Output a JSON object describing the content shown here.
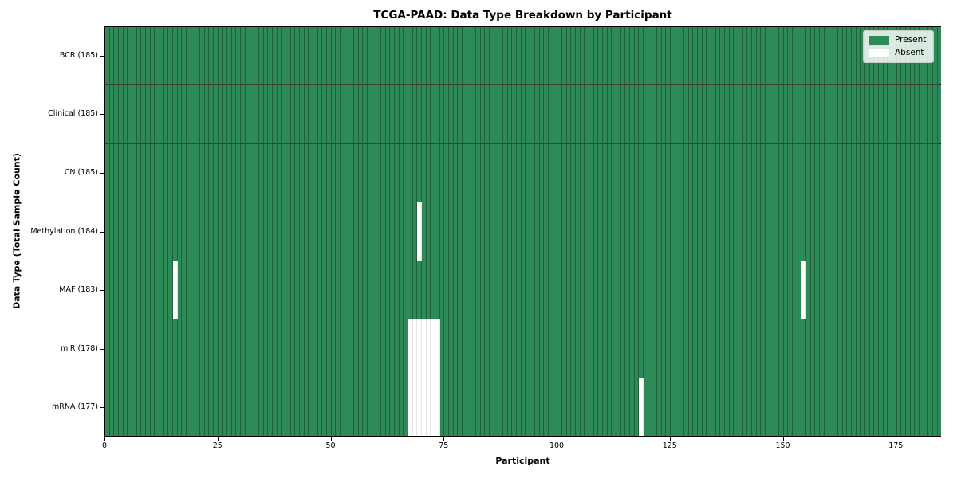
{
  "chart_data": {
    "type": "heatmap",
    "title": "TCGA-PAAD: Data Type Breakdown by Participant",
    "xlabel": "Participant",
    "ylabel": "Data Type (Total Sample Count)",
    "n_participants": 185,
    "xlim": [
      0,
      185
    ],
    "x_ticks": [
      0,
      25,
      50,
      75,
      100,
      125,
      150,
      175
    ],
    "grid": true,
    "colors": {
      "present": "#2e8b57",
      "absent": "#ffffff"
    },
    "legend": {
      "position": "upper right",
      "items": [
        {
          "label": "Present",
          "color": "#2e8b57"
        },
        {
          "label": "Absent",
          "color": "#ffffff"
        }
      ]
    },
    "rows": [
      {
        "label": "BCR (185)",
        "data_type": "BCR",
        "present_count": 185,
        "absent_participants": []
      },
      {
        "label": "Clinical (185)",
        "data_type": "Clinical",
        "present_count": 185,
        "absent_participants": []
      },
      {
        "label": "CN (185)",
        "data_type": "CN",
        "present_count": 185,
        "absent_participants": []
      },
      {
        "label": "Methylation (184)",
        "data_type": "Methylation",
        "present_count": 184,
        "absent_participants": [
          69
        ]
      },
      {
        "label": "MAF (183)",
        "data_type": "MAF",
        "present_count": 183,
        "absent_participants": [
          15,
          154
        ]
      },
      {
        "label": "miR (178)",
        "data_type": "miR",
        "present_count": 178,
        "absent_participants": [
          67,
          68,
          69,
          70,
          71,
          72,
          73
        ]
      },
      {
        "label": "mRNA (177)",
        "data_type": "mRNA",
        "present_count": 177,
        "absent_participants": [
          67,
          68,
          69,
          70,
          71,
          72,
          73,
          118
        ]
      }
    ]
  }
}
